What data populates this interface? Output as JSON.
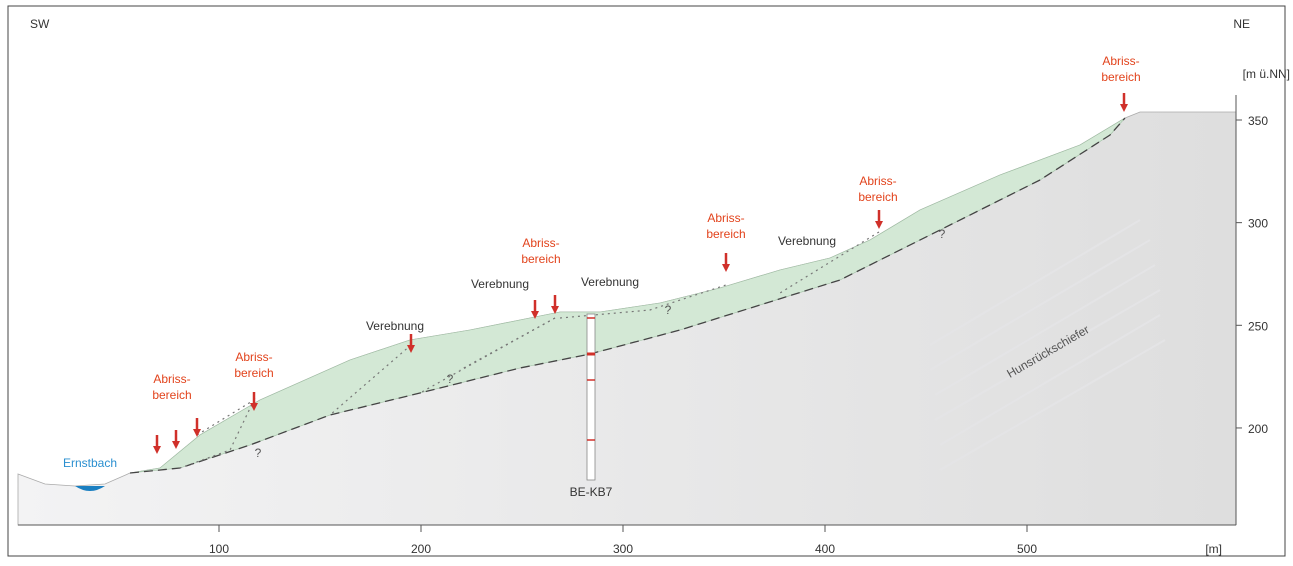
{
  "header": {
    "left": "SW",
    "right": "NE"
  },
  "axes": {
    "y_label": "[m ü.NN]",
    "x_label": "[m]",
    "x_ticks": [
      100,
      200,
      300,
      400,
      500
    ],
    "y_ticks": [
      200,
      250,
      300,
      350
    ]
  },
  "labels": {
    "stream": "Ernstbach",
    "borehole": "BE-KB7",
    "rock": "Hunsrückschiefer",
    "scarps": [
      {
        "line1": "Abriss-",
        "line2": "bereich"
      },
      {
        "line1": "Abriss-",
        "line2": "bereich"
      },
      {
        "line1": "Abriss-",
        "line2": "bereich"
      },
      {
        "line1": "Abriss-",
        "line2": "bereich"
      },
      {
        "line1": "Abriss-",
        "line2": "bereich"
      },
      {
        "line1": "Abriss-",
        "line2": "bereich"
      }
    ],
    "terraces": [
      "Verebnung",
      "Verebnung",
      "Verebnung",
      "Verebnung"
    ],
    "unknowns": [
      "?",
      "?",
      "?",
      "?"
    ]
  }
}
